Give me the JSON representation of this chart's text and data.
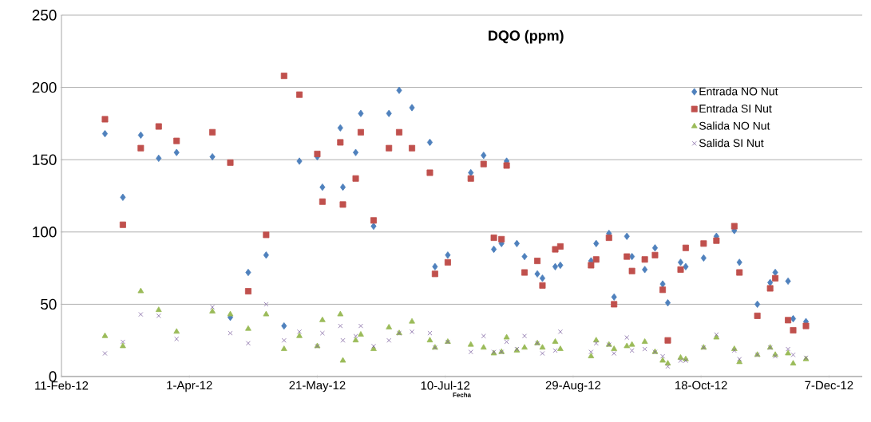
{
  "chart_data": {
    "type": "scatter",
    "title": "DQO (ppm)",
    "xlabel": "Fecha",
    "x": [
      "2012-02-28",
      "2012-03-06",
      "2012-03-13",
      "2012-03-20",
      "2012-03-27",
      "2012-04-10",
      "2012-04-17",
      "2012-04-24",
      "2012-05-01",
      "2012-05-08",
      "2012-05-14",
      "2012-05-21",
      "2012-05-23",
      "2012-05-30",
      "2012-05-31",
      "2012-06-05",
      "2012-06-07",
      "2012-06-12",
      "2012-06-18",
      "2012-06-22",
      "2012-06-27",
      "2012-07-04",
      "2012-07-06",
      "2012-07-11",
      "2012-07-20",
      "2012-07-25",
      "2012-07-29",
      "2012-08-01",
      "2012-08-03",
      "2012-08-07",
      "2012-08-10",
      "2012-08-15",
      "2012-08-17",
      "2012-08-22",
      "2012-08-24",
      "2012-09-05",
      "2012-09-07",
      "2012-09-12",
      "2012-09-14",
      "2012-09-19",
      "2012-09-21",
      "2012-09-26",
      "2012-09-30",
      "2012-10-03",
      "2012-10-05",
      "2012-10-10",
      "2012-10-12",
      "2012-10-19",
      "2012-10-24",
      "2012-10-31",
      "2012-11-02",
      "2012-11-09",
      "2012-11-14",
      "2012-11-16",
      "2012-11-21",
      "2012-11-23",
      "2012-11-28"
    ],
    "series": [
      {
        "name": "Entrada NO Nut",
        "color": "#4f81bd",
        "marker": "diamond",
        "values": [
          168,
          124,
          167,
          151,
          155,
          152,
          41,
          72,
          84,
          35,
          149,
          152,
          131,
          172,
          131,
          155,
          182,
          104,
          182,
          198,
          186,
          162,
          76,
          84,
          141,
          153,
          88,
          92,
          149,
          92,
          83,
          71,
          68,
          76,
          77,
          80,
          92,
          99,
          55,
          97,
          83,
          74,
          89,
          64,
          51,
          79,
          76,
          82,
          97,
          101,
          79,
          50,
          65,
          72,
          66,
          40,
          38
        ]
      },
      {
        "name": "Entrada SI Nut",
        "color": "#c0504d",
        "marker": "square",
        "values": [
          178,
          105,
          158,
          173,
          163,
          169,
          148,
          59,
          98,
          208,
          195,
          154,
          121,
          162,
          119,
          137,
          169,
          108,
          158,
          169,
          158,
          141,
          71,
          79,
          137,
          147,
          96,
          95,
          146,
          null,
          72,
          80,
          63,
          88,
          90,
          77,
          81,
          96,
          50,
          83,
          73,
          81,
          84,
          60,
          25,
          74,
          89,
          92,
          94,
          104,
          72,
          42,
          61,
          68,
          39,
          32,
          35
        ]
      },
      {
        "name": "Salida NO Nut",
        "color": "#9bbb59",
        "marker": "triangle",
        "values": [
          28,
          21,
          59,
          46,
          31,
          45,
          43,
          33,
          43,
          19,
          28,
          21,
          39,
          43,
          11,
          25,
          29,
          19,
          34,
          30,
          38,
          25,
          20,
          24,
          22,
          20,
          16,
          17,
          27,
          18,
          20,
          23,
          20,
          24,
          19,
          14,
          25,
          22,
          19,
          21,
          22,
          24,
          17,
          11,
          9,
          13,
          12,
          20,
          27,
          19,
          10,
          15,
          20,
          15,
          16,
          9,
          12
        ]
      },
      {
        "name": "Salida SI Nut",
        "color": "#8064a2",
        "marker": "cross",
        "values": [
          16,
          24,
          43,
          42,
          26,
          48,
          30,
          23,
          50,
          25,
          31,
          21,
          30,
          35,
          25,
          28,
          35,
          21,
          25,
          30,
          31,
          30,
          20,
          24,
          17,
          28,
          17,
          17,
          24,
          19,
          28,
          23,
          16,
          18,
          31,
          17,
          23,
          22,
          16,
          27,
          18,
          19,
          17,
          14,
          7,
          11,
          11,
          20,
          29,
          18,
          12,
          15,
          20,
          14,
          19,
          15,
          13
        ]
      }
    ],
    "xlim": [
      "2012-02-11",
      "2012-12-20"
    ],
    "xticks": [
      {
        "value": "2012-02-11",
        "label": "11-Feb-12"
      },
      {
        "value": "2012-04-01",
        "label": "1-Apr-12"
      },
      {
        "value": "2012-05-21",
        "label": "21-May-12"
      },
      {
        "value": "2012-07-10",
        "label": "10-Jul-12"
      },
      {
        "value": "2012-08-29",
        "label": "29-Aug-12"
      },
      {
        "value": "2012-10-18",
        "label": "18-Oct-12"
      },
      {
        "value": "2012-12-07",
        "label": "7-Dec-12"
      }
    ],
    "ylim": [
      0,
      250
    ],
    "yticks": [
      0,
      50,
      100,
      150,
      200,
      250
    ],
    "grid": "y",
    "legend": "top right"
  }
}
